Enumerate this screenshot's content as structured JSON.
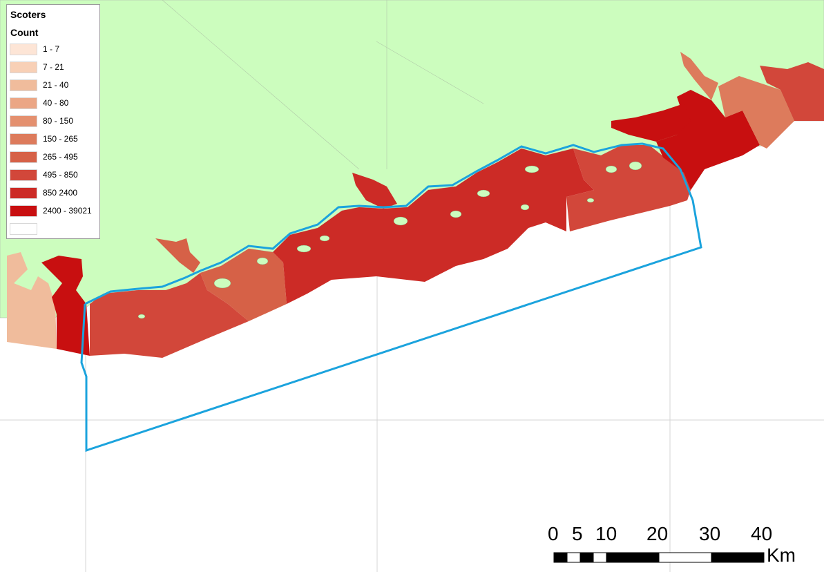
{
  "legend": {
    "title": "Scoters",
    "subtitle": "Count",
    "classes": [
      {
        "label": "1 - 7",
        "color": "#fde5d6"
      },
      {
        "label": "7 - 21",
        "color": "#f8d0b6"
      },
      {
        "label": "21 - 40",
        "color": "#f0bc9c"
      },
      {
        "label": "40 - 80",
        "color": "#eba685"
      },
      {
        "label": "80 - 150",
        "color": "#e4906f"
      },
      {
        "label": "150 - 265",
        "color": "#dd7b5c"
      },
      {
        "label": "265 - 495",
        "color": "#d66147"
      },
      {
        "label": "495 - 850",
        "color": "#d2473a"
      },
      {
        "label": "850 2400",
        "color": "#cc2b26"
      },
      {
        "label": "2400 - 39021",
        "color": "#c80f10"
      },
      {
        "label": "",
        "color": "#ffffff"
      }
    ]
  },
  "scale_bar": {
    "labels": [
      "0",
      "5",
      "10",
      "20",
      "30",
      "40"
    ],
    "unit": "Km"
  },
  "colors": {
    "land": "#ccfdbe",
    "sea": "#ffffff",
    "boundary": "#1ba3dd",
    "grid": "#d4d4d4"
  }
}
